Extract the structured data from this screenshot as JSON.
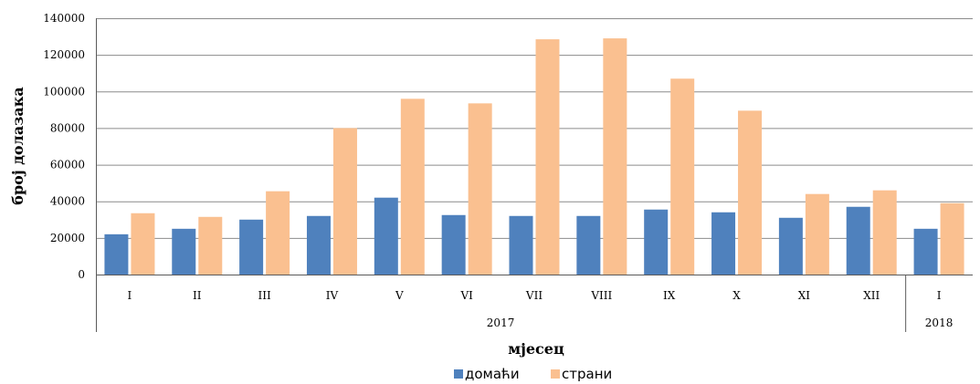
{
  "chart_data": {
    "type": "bar",
    "categories": [
      "I",
      "II",
      "III",
      "IV",
      "V",
      "VI",
      "VII",
      "VIII",
      "IX",
      "X",
      "XI",
      "XII",
      "I"
    ],
    "year_groups": [
      {
        "label": "2017",
        "count": 12
      },
      {
        "label": "2018",
        "count": 1
      }
    ],
    "series": [
      {
        "name": "домаћи",
        "color": "#4F81BD",
        "values": [
          22000,
          25000,
          30000,
          32000,
          42000,
          32500,
          32000,
          32000,
          35500,
          34000,
          31000,
          37000,
          25000
        ]
      },
      {
        "name": "страни",
        "color": "#FAC090",
        "values": [
          33500,
          31500,
          45500,
          80000,
          96000,
          93500,
          128500,
          129000,
          107000,
          89500,
          44000,
          46000,
          39000
        ]
      }
    ],
    "title": "",
    "xlabel": "мјесец",
    "ylabel": "број долазака",
    "ylim": [
      0,
      140000
    ],
    "yticks": [
      0,
      20000,
      40000,
      60000,
      80000,
      100000,
      120000,
      140000
    ],
    "grid": true,
    "legend_position": "bottom"
  }
}
